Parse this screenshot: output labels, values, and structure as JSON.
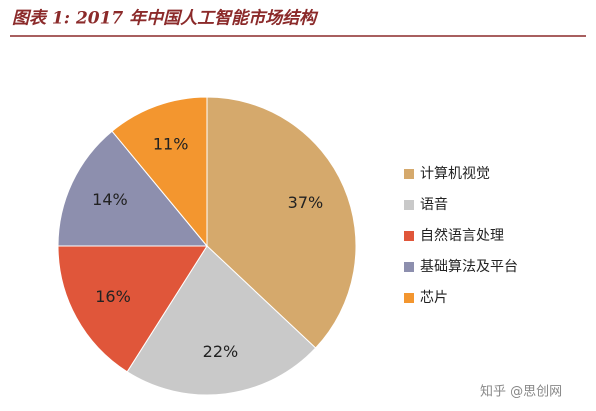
{
  "chart_data": {
    "type": "pie",
    "title": "图表 1: 2017 年中国人工智能市场结构",
    "categories": [
      "计算机视觉",
      "语音",
      "自然语言处理",
      "基础算法及平台",
      "芯片"
    ],
    "values": [
      37,
      22,
      16,
      14,
      11
    ],
    "value_labels": [
      "37%",
      "22%",
      "16%",
      "14%",
      "11%"
    ],
    "colors": [
      "#d5a96c",
      "#c9c9c9",
      "#e0563a",
      "#8d8fae",
      "#f3962f"
    ],
    "legend": "right",
    "watermark": "知乎 @思创网"
  }
}
